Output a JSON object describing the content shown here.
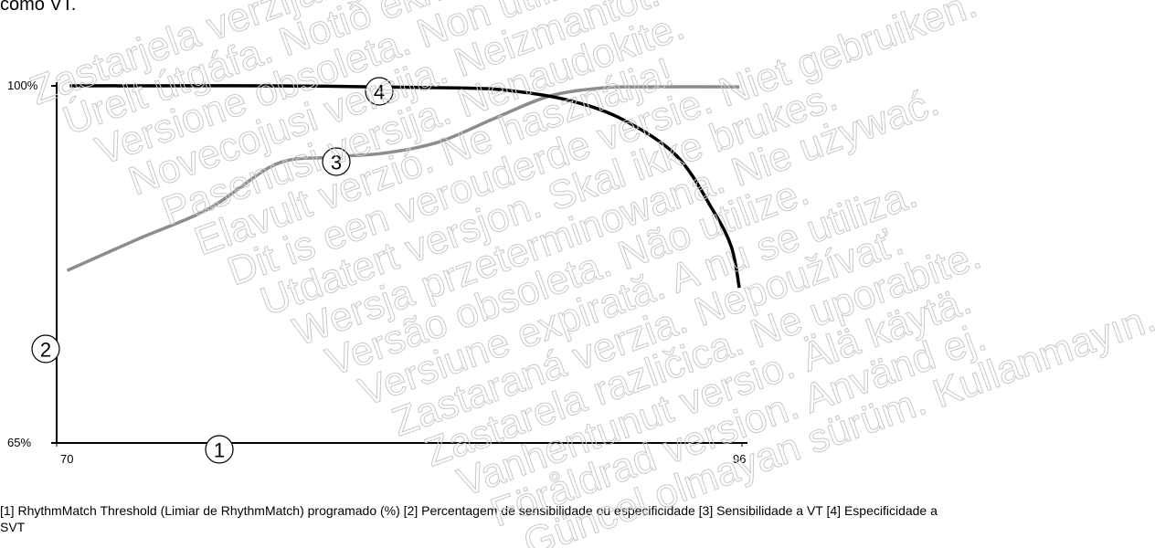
{
  "header_text": "como VT.",
  "chart_data": {
    "type": "line",
    "x_label": "1",
    "y_label": "2",
    "xlim": [
      70,
      96
    ],
    "ylim": [
      65,
      100
    ],
    "xticks": [
      70,
      96
    ],
    "yticks": [
      {
        "value": 65,
        "label": "65%"
      },
      {
        "value": 100,
        "label": "100%"
      }
    ],
    "series": [
      {
        "name": "3",
        "color": "#8c8c8c",
        "x": [
          70.4,
          73.1,
          75.8,
          78.3,
          80.3,
          82.4,
          84.5,
          86.6,
          88.7,
          90.7,
          92.1,
          95.9
        ],
        "values": [
          81.9,
          85.0,
          88.0,
          92.3,
          93.0,
          93.4,
          94.5,
          96.8,
          99.0,
          99.8,
          99.9,
          99.9
        ]
      },
      {
        "name": "4",
        "color": "#000000",
        "x": [
          70.5,
          78.3,
          85.2,
          87.3,
          89.4,
          91.4,
          93.5,
          94.9,
          95.6,
          95.9
        ],
        "values": [
          100,
          100,
          99.8,
          99.5,
          98.6,
          96.8,
          93.2,
          87.8,
          84.2,
          80.2
        ]
      }
    ]
  },
  "caption": "[1] RhythmMatch Threshold (Limiar de RhythmMatch) programado (%) [2] Percentagem de sensibilidade ou especificidade [3] Sensibilidade a VT [4] Especificidade a SVT",
  "watermark": [
    "Zastarjela verzija. Nemojte upotrebljavati.",
    "Úrelt útgáfa. Notið ekki.",
    "Versione obsoleta. Non utilizzare.",
    "Novecojusi versija. Neizmantot.",
    "Pasenusi versija. Nenaudokite.",
    "Elavult verzió. Ne használja!",
    "Dit is een verouderde versie. Niet gebruiken.",
    "Utdatert versjon. Skal ikke brukes.",
    "Wersja przeterminowana. Nie używać.",
    "Versão obsoleta. Não utilize.",
    "Versiune expirată. A nu se utiliza.",
    "Zastaraná verzia. Nepoužívať.",
    "Zastarela različica. Ne uporabite.",
    "Vanhentunut versio. Älä käytä.",
    "Föråldrad version. Använd ej.",
    "Güncel olmayan sürüm. Kullanmayın."
  ]
}
